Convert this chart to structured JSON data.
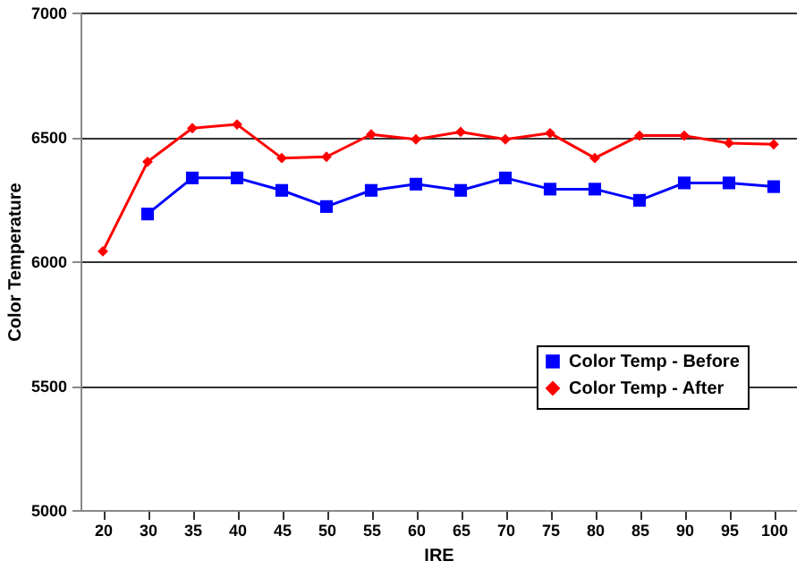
{
  "chart_data": {
    "type": "line",
    "xlabel": "IRE",
    "ylabel": "Color Temperature",
    "categories": [
      "20",
      "30",
      "35",
      "40",
      "45",
      "50",
      "55",
      "60",
      "65",
      "70",
      "75",
      "80",
      "85",
      "90",
      "95",
      "100"
    ],
    "series": [
      {
        "name": "Color Temp - Before",
        "color": "#0000ff",
        "marker": "square",
        "values": [
          null,
          6190,
          6335,
          6335,
          6285,
          6220,
          6285,
          6310,
          6285,
          6335,
          6290,
          6290,
          6245,
          6315,
          6315,
          6300
        ]
      },
      {
        "name": "Color Temp - After",
        "color": "#ff0000",
        "marker": "diamond",
        "values": [
          6040,
          6400,
          6535,
          6550,
          6415,
          6420,
          6510,
          6490,
          6520,
          6490,
          6515,
          6415,
          6505,
          6505,
          6475,
          6470
        ]
      }
    ],
    "ylim": [
      5000,
      7000
    ],
    "yticks": [
      5000,
      5500,
      6000,
      6500,
      7000
    ],
    "grid": "y",
    "legend": "bottom right"
  }
}
